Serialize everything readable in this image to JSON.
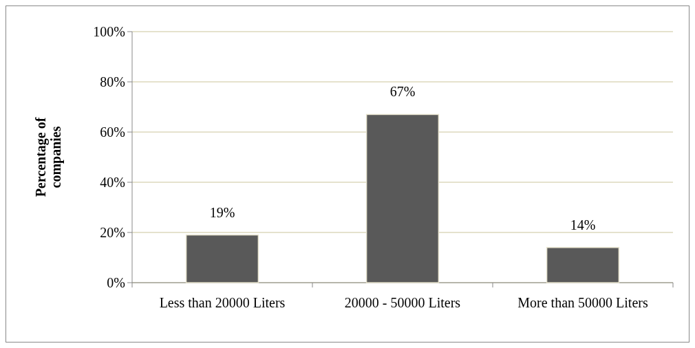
{
  "chart_data": {
    "type": "bar",
    "ylabel": "Percentage of companies",
    "categories": [
      "Less than 20000 Liters",
      "20000 - 50000 Liters",
      "More than 50000 Liters"
    ],
    "values": [
      19,
      67,
      14
    ],
    "color": "#595959",
    "value_labels": [
      "19%",
      "67%",
      "14%"
    ],
    "ylim": [
      0,
      100
    ],
    "yticks": [
      {
        "value": 0,
        "label": "0%"
      },
      {
        "value": 20,
        "label": "20%"
      },
      {
        "value": 40,
        "label": "40%"
      },
      {
        "value": 60,
        "label": "60%"
      },
      {
        "value": 80,
        "label": "80%"
      },
      {
        "value": 100,
        "label": "100%"
      }
    ],
    "grid": "y"
  }
}
